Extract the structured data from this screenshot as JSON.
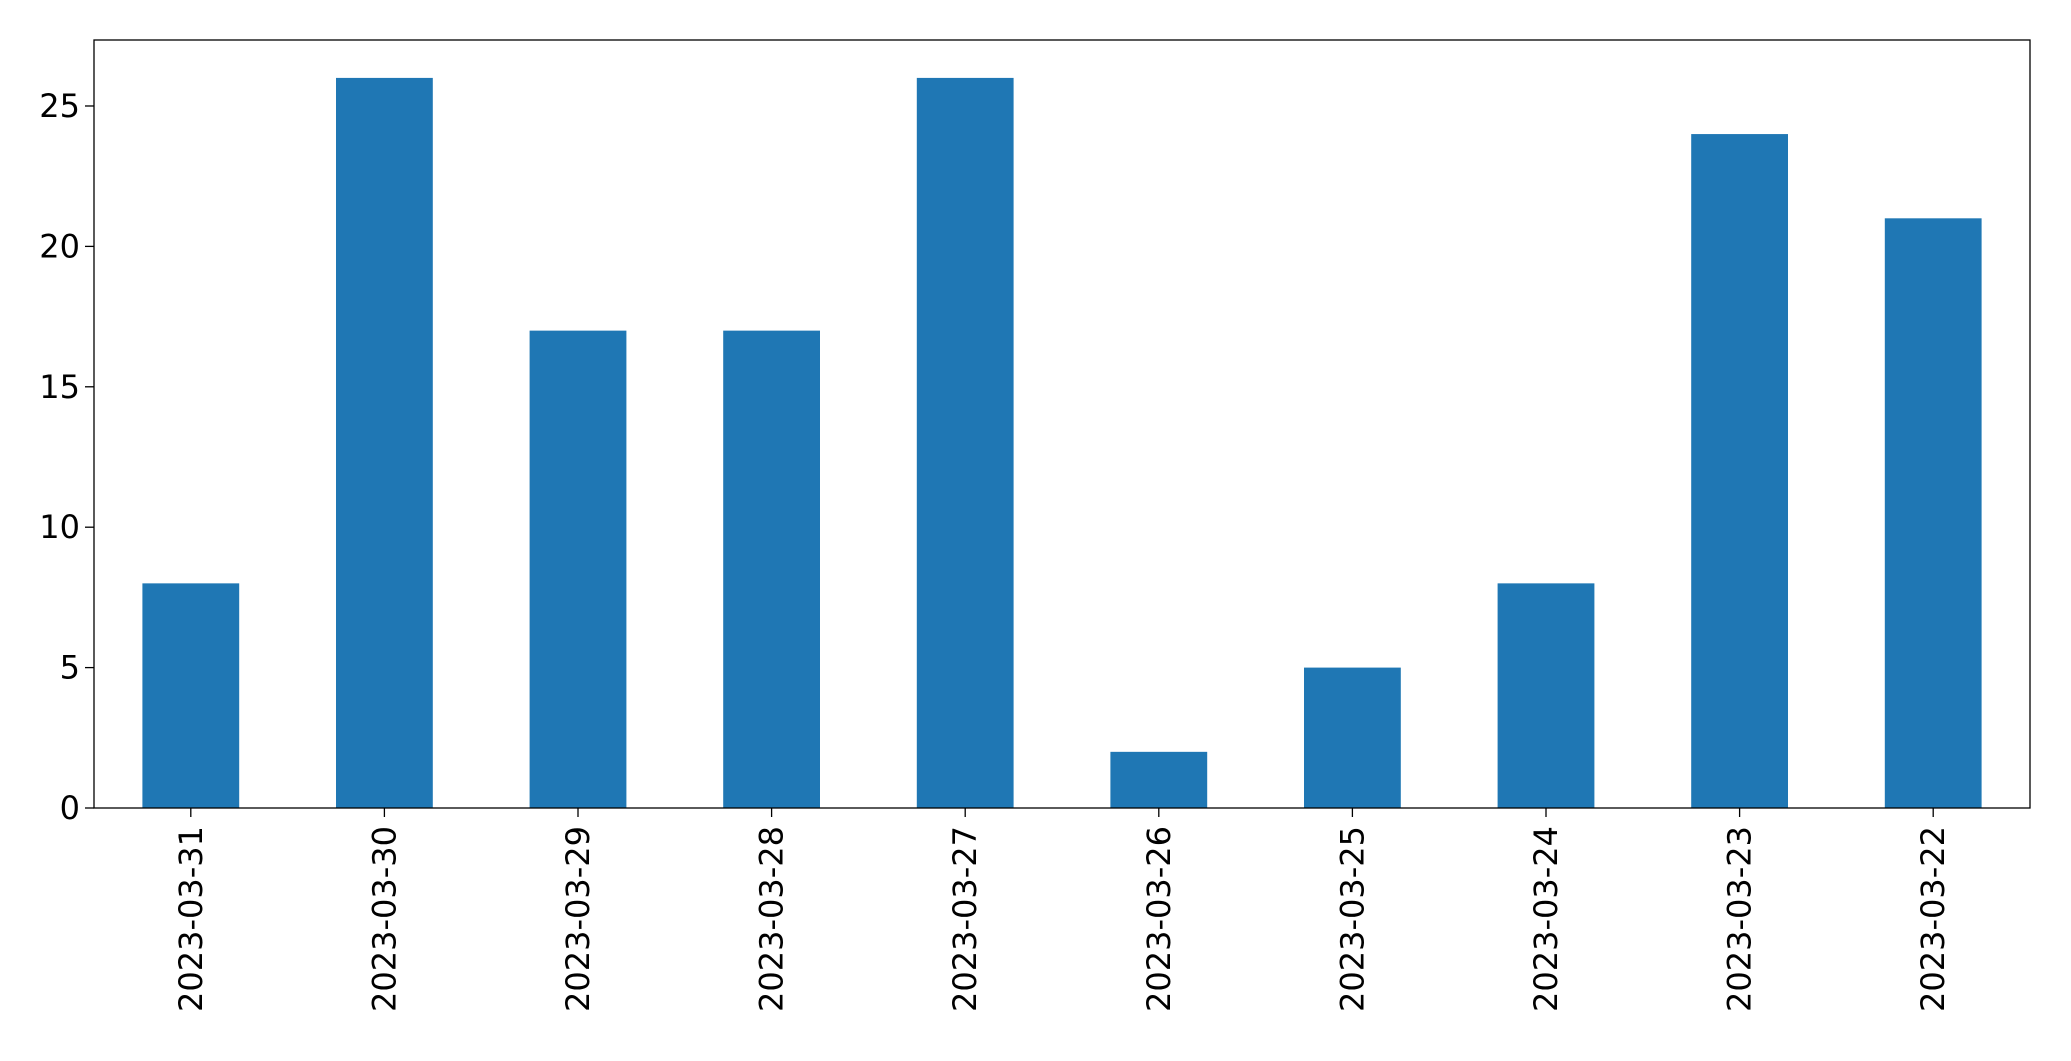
{
  "chart_data": {
    "type": "bar",
    "categories": [
      "2023-03-31",
      "2023-03-30",
      "2023-03-29",
      "2023-03-28",
      "2023-03-27",
      "2023-03-26",
      "2023-03-25",
      "2023-03-24",
      "2023-03-23",
      "2023-03-22"
    ],
    "values": [
      8,
      26,
      17,
      17,
      26,
      2,
      5,
      8,
      24,
      21
    ],
    "color": "#1f77b4",
    "ylim": [
      0,
      27.35
    ],
    "yticks": [
      0,
      5,
      10,
      15,
      20,
      25
    ],
    "grid": false
  }
}
